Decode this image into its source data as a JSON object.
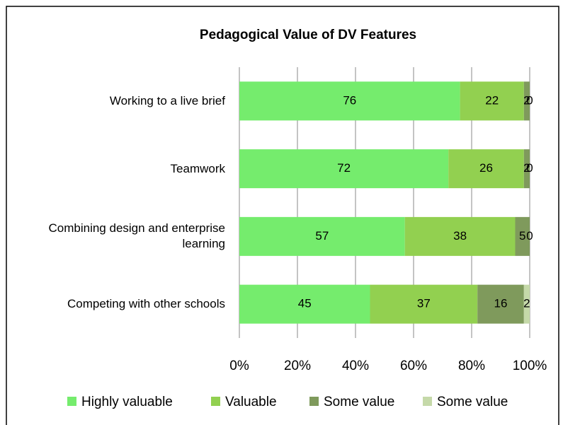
{
  "chart_data": {
    "type": "bar",
    "orientation": "horizontal",
    "stacked": true,
    "title": "Pedagogical Value of DV Features",
    "categories": [
      "Working to a live brief",
      "Teamwork",
      "Combining design and enterprise learning",
      "Competing with other schools"
    ],
    "series": [
      {
        "name": "Highly valuable",
        "color": "#75ec6d",
        "values": [
          76,
          72,
          57,
          45
        ]
      },
      {
        "name": "Valuable",
        "color": "#92d050",
        "values": [
          22,
          26,
          38,
          37
        ]
      },
      {
        "name": "Some value",
        "color": "#7f9a5c",
        "values": [
          2,
          2,
          5,
          16
        ]
      },
      {
        "name": "Some value",
        "color": "#c5d9a9",
        "values": [
          0,
          0,
          0,
          2
        ]
      }
    ],
    "xlim": [
      0,
      100
    ],
    "xticks": [
      {
        "value": 0,
        "label": "0%"
      },
      {
        "value": 20,
        "label": "20%"
      },
      {
        "value": 40,
        "label": "40%"
      },
      {
        "value": 60,
        "label": "60%"
      },
      {
        "value": 80,
        "label": "80%"
      },
      {
        "value": 100,
        "label": "100%"
      }
    ],
    "grid": true,
    "legend": "bottom"
  }
}
